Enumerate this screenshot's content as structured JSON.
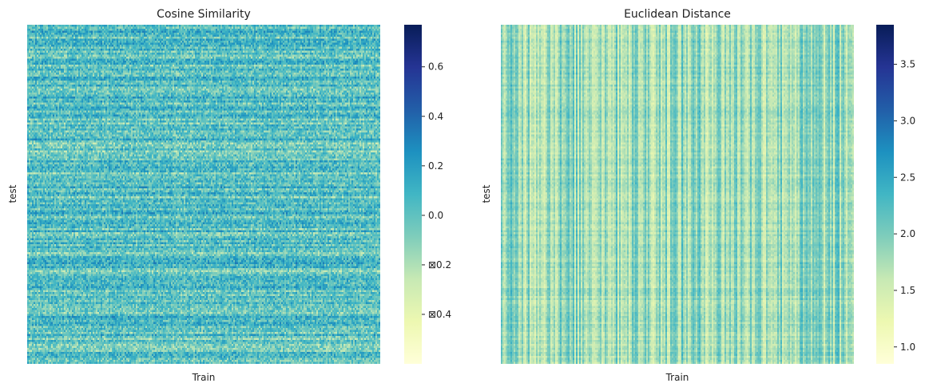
{
  "chart_data": [
    {
      "type": "heatmap",
      "title": "Cosine Similarity",
      "xlabel": "Train",
      "ylabel": "test",
      "colormap": "YlGnBu",
      "value_range": [
        -0.6,
        0.77
      ],
      "colorbar_ticks": [
        0.6,
        0.4,
        0.2,
        0.0,
        -0.2,
        -0.4
      ],
      "colorbar_tick_labels": [
        "0.6",
        "0.4",
        "0.2",
        "0.0",
        "⊠0.2",
        "⊠0.4"
      ],
      "typical_value": 0.02,
      "x_ticks_shown": false,
      "y_ticks_shown": false
    },
    {
      "type": "heatmap",
      "title": "Euclidean Distance",
      "xlabel": "Train",
      "ylabel": "test",
      "colormap": "YlGnBu",
      "value_range": [
        0.85,
        3.85
      ],
      "colorbar_ticks": [
        3.5,
        3.0,
        2.5,
        2.0,
        1.5,
        1.0
      ],
      "colorbar_tick_labels": [
        "3.5",
        "3.0",
        "2.5",
        "2.0",
        "1.5",
        "1.0"
      ],
      "typical_value": 1.85,
      "x_ticks_shown": false,
      "y_ticks_shown": false
    }
  ],
  "colors": {
    "colormap_stops": [
      "#ffffd9",
      "#edf8b1",
      "#c7e9b4",
      "#7fcdbb",
      "#41b6c4",
      "#1d91c0",
      "#225ea8",
      "#253494",
      "#081d58"
    ]
  }
}
